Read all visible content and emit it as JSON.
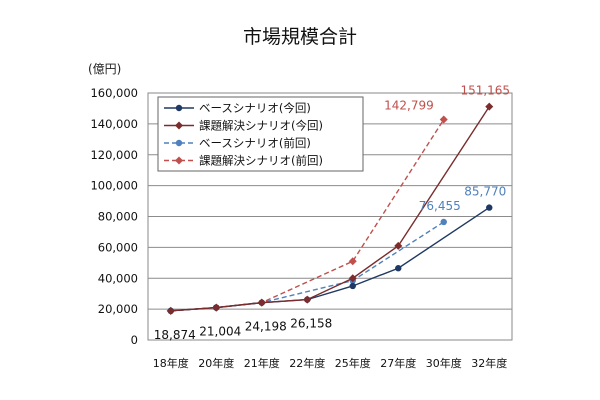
{
  "chart_data": {
    "type": "line",
    "title": "市場規模合計",
    "ylabel": "(億円)",
    "xlabel": "",
    "ylim": [
      0,
      160000
    ],
    "yticks": [
      "0",
      "20,000",
      "40,000",
      "60,000",
      "80,000",
      "100,000",
      "120,000",
      "140,000",
      "160,000"
    ],
    "categories": [
      "18年度",
      "20年度",
      "21年度",
      "22年度",
      "25年度",
      "27年度",
      "30年度",
      "32年度"
    ],
    "grid": true,
    "legend_position": "top-left",
    "series": [
      {
        "name": "ベースシナリオ(今回)",
        "color": "#1f3864",
        "line_style": "solid",
        "marker": "circle",
        "points": [
          {
            "x": "18年度",
            "y": 18874
          },
          {
            "x": "20年度",
            "y": 21004
          },
          {
            "x": "21年度",
            "y": 24198
          },
          {
            "x": "22年度",
            "y": 26158
          },
          {
            "x": "25年度",
            "y": 35000
          },
          {
            "x": "27年度",
            "y": 46500
          },
          {
            "x": "32年度",
            "y": 85770
          }
        ]
      },
      {
        "name": "課題解決シナリオ(今回)",
        "color": "#7b2c2c",
        "line_style": "solid",
        "marker": "diamond",
        "points": [
          {
            "x": "18年度",
            "y": 18874
          },
          {
            "x": "20年度",
            "y": 21004
          },
          {
            "x": "21年度",
            "y": 24198
          },
          {
            "x": "22年度",
            "y": 26158
          },
          {
            "x": "25年度",
            "y": 40000
          },
          {
            "x": "27年度",
            "y": 61000
          },
          {
            "x": "32年度",
            "y": 151165
          }
        ]
      },
      {
        "name": "ベースシナリオ(前回)",
        "color": "#4f81bd",
        "line_style": "dashed",
        "marker": "circle",
        "points": [
          {
            "x": "18年度",
            "y": 18874
          },
          {
            "x": "20年度",
            "y": 21004
          },
          {
            "x": "21年度",
            "y": 24198
          },
          {
            "x": "25年度",
            "y": 38500
          },
          {
            "x": "30年度",
            "y": 76455
          }
        ]
      },
      {
        "name": "課題解決シナリオ(前回)",
        "color": "#c0504d",
        "line_style": "dashed",
        "marker": "diamond",
        "points": [
          {
            "x": "18年度",
            "y": 18874
          },
          {
            "x": "20年度",
            "y": 21004
          },
          {
            "x": "21年度",
            "y": 24198
          },
          {
            "x": "25年度",
            "y": 51000
          },
          {
            "x": "30年度",
            "y": 142799
          }
        ]
      }
    ],
    "data_labels": [
      {
        "text": "18,874",
        "series": "ベースシナリオ(今回)",
        "x": "18年度",
        "y": 18874,
        "color": "#111111",
        "placement": "below"
      },
      {
        "text": "21,004",
        "series": "ベースシナリオ(今回)",
        "x": "20年度",
        "y": 21004,
        "color": "#111111",
        "placement": "below"
      },
      {
        "text": "24,198",
        "series": "ベースシナリオ(今回)",
        "x": "21年度",
        "y": 24198,
        "color": "#111111",
        "placement": "below"
      },
      {
        "text": "26,158",
        "series": "ベースシナリオ(今回)",
        "x": "22年度",
        "y": 26158,
        "color": "#111111",
        "placement": "below"
      },
      {
        "text": "85,770",
        "series": "ベースシナリオ(今回)",
        "x": "32年度",
        "y": 85770,
        "color": "#4f81bd",
        "placement": "above"
      },
      {
        "text": "151,165",
        "series": "課題解決シナリオ(今回)",
        "x": "32年度",
        "y": 151165,
        "color": "#c0504d",
        "placement": "above"
      },
      {
        "text": "76,455",
        "series": "ベースシナリオ(前回)",
        "x": "30年度",
        "y": 76455,
        "color": "#4f81bd",
        "placement": "above"
      },
      {
        "text": "142,799",
        "series": "課題解決シナリオ(前回)",
        "x": "30年度",
        "y": 142799,
        "color": "#c0504d",
        "placement": "left"
      }
    ]
  }
}
